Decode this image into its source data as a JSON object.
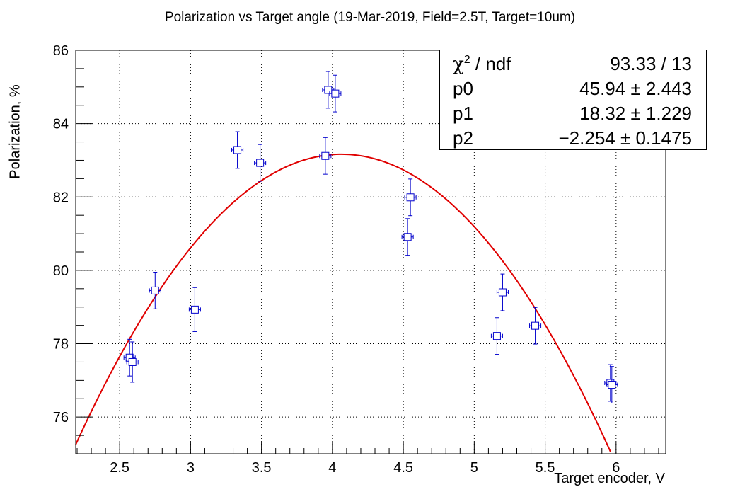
{
  "chart_data": {
    "type": "scatter",
    "title": "Polarization vs Target angle (19-Mar-2019, Field=2.5T, Target=10um)",
    "xlabel": "Target encoder, V",
    "ylabel": "Polarization, %",
    "xlim": [
      2.19,
      6.35
    ],
    "ylim": [
      75,
      86
    ],
    "x_ticks": [
      "2.5",
      "3",
      "3.5",
      "4",
      "4.5",
      "5",
      "5.5",
      "6"
    ],
    "y_ticks": [
      "76",
      "78",
      "80",
      "82",
      "84",
      "86"
    ],
    "grid": true,
    "points": [
      {
        "x": 2.57,
        "y": 77.62,
        "xerr": 0.04,
        "yerr": 0.5
      },
      {
        "x": 2.59,
        "y": 77.5,
        "xerr": 0.04,
        "yerr": 0.55
      },
      {
        "x": 2.75,
        "y": 79.45,
        "xerr": 0.04,
        "yerr": 0.5
      },
      {
        "x": 3.03,
        "y": 78.93,
        "xerr": 0.04,
        "yerr": 0.6
      },
      {
        "x": 3.33,
        "y": 83.28,
        "xerr": 0.04,
        "yerr": 0.5
      },
      {
        "x": 3.49,
        "y": 82.93,
        "xerr": 0.04,
        "yerr": 0.5
      },
      {
        "x": 3.95,
        "y": 83.12,
        "xerr": 0.04,
        "yerr": 0.5
      },
      {
        "x": 3.97,
        "y": 84.92,
        "xerr": 0.04,
        "yerr": 0.5
      },
      {
        "x": 4.02,
        "y": 84.82,
        "xerr": 0.04,
        "yerr": 0.5
      },
      {
        "x": 4.53,
        "y": 80.91,
        "xerr": 0.04,
        "yerr": 0.5
      },
      {
        "x": 4.55,
        "y": 81.99,
        "xerr": 0.04,
        "yerr": 0.5
      },
      {
        "x": 5.16,
        "y": 78.21,
        "xerr": 0.04,
        "yerr": 0.5
      },
      {
        "x": 5.2,
        "y": 79.4,
        "xerr": 0.04,
        "yerr": 0.5
      },
      {
        "x": 5.43,
        "y": 78.49,
        "xerr": 0.04,
        "yerr": 0.5
      },
      {
        "x": 5.96,
        "y": 76.93,
        "xerr": 0.04,
        "yerr": 0.5
      },
      {
        "x": 5.97,
        "y": 76.88,
        "xerr": 0.04,
        "yerr": 0.5
      }
    ],
    "fit": {
      "type": "pol2",
      "p0": 45.94,
      "p1": 18.32,
      "p2": -2.254,
      "x_range": [
        2.19,
        5.98
      ]
    },
    "colors": {
      "points": "#0000cc",
      "fit": "#e00000",
      "grid": "#000000",
      "axis": "#000000"
    }
  },
  "stats_box": {
    "rows": [
      {
        "name": "χ² / ndf",
        "value": "93.33 / 13"
      },
      {
        "name": "p0",
        "value": "45.94 ± 2.443"
      },
      {
        "name": "p1",
        "value": "18.32 ± 1.229"
      },
      {
        "name": "p2",
        "value": "−2.254 ± 0.1475"
      }
    ]
  }
}
